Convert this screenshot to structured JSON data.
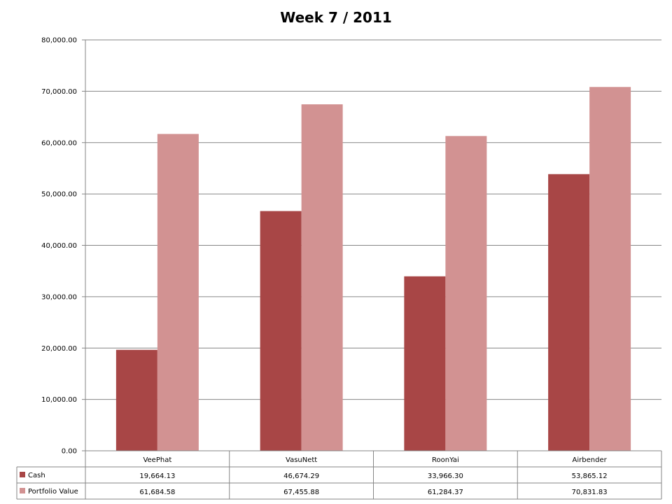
{
  "chart_data": {
    "type": "bar",
    "title": "Week 7 / 2011",
    "categories": [
      "VeePhat",
      "VasuNett",
      "RoonYai",
      "Airbender"
    ],
    "series": [
      {
        "name": "Cash",
        "color": "#a84646",
        "values": [
          19664.13,
          46674.29,
          33966.3,
          53865.12
        ],
        "value_labels": [
          "19,664.13",
          "46,674.29",
          "33,966.30",
          "53,865.12"
        ]
      },
      {
        "name": "Portfolio Value",
        "color": "#d29292",
        "values": [
          61684.58,
          67455.88,
          61284.37,
          70831.83
        ],
        "value_labels": [
          "61,684.58",
          "67,455.88",
          "61,284.37",
          "70,831.83"
        ]
      }
    ],
    "ylim": [
      0,
      80000
    ],
    "yticks": [
      0,
      10000,
      20000,
      30000,
      40000,
      50000,
      60000,
      70000,
      80000
    ],
    "ytick_labels": [
      "0.00",
      "10,000.00",
      "20,000.00",
      "30,000.00",
      "40,000.00",
      "50,000.00",
      "60,000.00",
      "70,000.00",
      "80,000.00"
    ],
    "grid": true,
    "legend": "data-table-below"
  }
}
